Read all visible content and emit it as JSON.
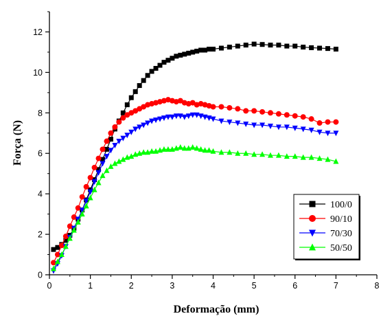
{
  "chart_data": {
    "type": "scatter",
    "title": "",
    "xlabel": "Deformação (mm)",
    "ylabel": "Força (N)",
    "xlim": [
      0,
      8
    ],
    "ylim": [
      0,
      13
    ],
    "xticks": [
      0,
      1,
      2,
      3,
      4,
      5,
      6,
      7,
      8
    ],
    "yticks": [
      0,
      2,
      4,
      6,
      8,
      10,
      12
    ],
    "grid": false,
    "legend_position": "bottom-right",
    "series": [
      {
        "name": "100/0",
        "color": "#000000",
        "marker": "square",
        "x": [
          0.1,
          0.2,
          0.3,
          0.4,
          0.5,
          0.6,
          0.7,
          0.8,
          0.9,
          1.0,
          1.1,
          1.2,
          1.3,
          1.4,
          1.5,
          1.6,
          1.7,
          1.8,
          1.9,
          2.0,
          2.1,
          2.2,
          2.3,
          2.4,
          2.5,
          2.6,
          2.7,
          2.8,
          2.9,
          3.0,
          3.1,
          3.2,
          3.3,
          3.4,
          3.5,
          3.6,
          3.7,
          3.8,
          3.9,
          4.0,
          4.2,
          4.4,
          4.6,
          4.8,
          5.0,
          5.2,
          5.4,
          5.6,
          5.8,
          6.0,
          6.2,
          6.4,
          6.6,
          6.8,
          7.0
        ],
        "y": [
          1.25,
          1.35,
          1.5,
          1.7,
          1.95,
          2.3,
          2.75,
          3.2,
          3.7,
          4.2,
          4.7,
          5.2,
          5.7,
          6.2,
          6.7,
          7.2,
          7.6,
          8.0,
          8.4,
          8.75,
          9.05,
          9.35,
          9.6,
          9.85,
          10.05,
          10.2,
          10.35,
          10.5,
          10.6,
          10.7,
          10.8,
          10.85,
          10.9,
          10.95,
          11.0,
          11.05,
          11.1,
          11.1,
          11.15,
          11.15,
          11.2,
          11.25,
          11.3,
          11.35,
          11.4,
          11.38,
          11.35,
          11.35,
          11.3,
          11.3,
          11.25,
          11.22,
          11.2,
          11.18,
          11.15
        ]
      },
      {
        "name": "90/10",
        "color": "#ff0000",
        "marker": "circle",
        "x": [
          0.1,
          0.2,
          0.3,
          0.4,
          0.5,
          0.6,
          0.7,
          0.8,
          0.9,
          1.0,
          1.1,
          1.2,
          1.3,
          1.4,
          1.5,
          1.6,
          1.7,
          1.8,
          1.9,
          2.0,
          2.1,
          2.2,
          2.3,
          2.4,
          2.5,
          2.6,
          2.7,
          2.8,
          2.9,
          3.0,
          3.1,
          3.2,
          3.3,
          3.4,
          3.5,
          3.6,
          3.7,
          3.8,
          3.9,
          4.0,
          4.2,
          4.4,
          4.6,
          4.8,
          5.0,
          5.2,
          5.4,
          5.6,
          5.8,
          6.0,
          6.2,
          6.4,
          6.6,
          6.8,
          7.0
        ],
        "y": [
          0.6,
          1.0,
          1.45,
          1.9,
          2.4,
          2.85,
          3.3,
          3.85,
          4.35,
          4.8,
          5.3,
          5.75,
          6.2,
          6.6,
          7.0,
          7.3,
          7.55,
          7.75,
          7.9,
          8.0,
          8.1,
          8.2,
          8.3,
          8.4,
          8.45,
          8.5,
          8.55,
          8.6,
          8.65,
          8.6,
          8.55,
          8.6,
          8.5,
          8.45,
          8.5,
          8.4,
          8.45,
          8.4,
          8.35,
          8.3,
          8.3,
          8.25,
          8.2,
          8.1,
          8.1,
          8.05,
          8.0,
          7.95,
          7.9,
          7.85,
          7.8,
          7.7,
          7.5,
          7.55,
          7.55
        ]
      },
      {
        "name": "70/30",
        "color": "#0000ff",
        "marker": "triangle-down",
        "x": [
          0.1,
          0.2,
          0.3,
          0.4,
          0.5,
          0.6,
          0.7,
          0.8,
          0.9,
          1.0,
          1.1,
          1.2,
          1.3,
          1.4,
          1.5,
          1.6,
          1.7,
          1.8,
          1.9,
          2.0,
          2.1,
          2.2,
          2.3,
          2.4,
          2.5,
          2.6,
          2.7,
          2.8,
          2.9,
          3.0,
          3.1,
          3.2,
          3.3,
          3.4,
          3.5,
          3.6,
          3.7,
          3.8,
          3.9,
          4.0,
          4.2,
          4.4,
          4.6,
          4.8,
          5.0,
          5.2,
          5.4,
          5.6,
          5.8,
          6.0,
          6.2,
          6.4,
          6.6,
          6.8,
          7.0
        ],
        "y": [
          0.2,
          0.55,
          0.95,
          1.4,
          1.85,
          2.3,
          2.75,
          3.2,
          3.65,
          4.1,
          4.6,
          5.05,
          5.5,
          5.85,
          6.15,
          6.4,
          6.6,
          6.75,
          6.9,
          7.05,
          7.2,
          7.3,
          7.4,
          7.5,
          7.6,
          7.65,
          7.7,
          7.75,
          7.8,
          7.8,
          7.85,
          7.85,
          7.8,
          7.85,
          7.9,
          7.9,
          7.85,
          7.8,
          7.75,
          7.7,
          7.6,
          7.55,
          7.5,
          7.45,
          7.4,
          7.4,
          7.35,
          7.3,
          7.3,
          7.25,
          7.2,
          7.15,
          7.05,
          7.0,
          7.0
        ]
      },
      {
        "name": "50/50",
        "color": "#00ff00",
        "marker": "triangle-up",
        "x": [
          0.1,
          0.2,
          0.3,
          0.4,
          0.5,
          0.6,
          0.7,
          0.8,
          0.9,
          1.0,
          1.1,
          1.2,
          1.3,
          1.4,
          1.5,
          1.6,
          1.7,
          1.8,
          1.9,
          2.0,
          2.1,
          2.2,
          2.3,
          2.4,
          2.5,
          2.6,
          2.7,
          2.8,
          2.9,
          3.0,
          3.1,
          3.2,
          3.3,
          3.4,
          3.5,
          3.6,
          3.7,
          3.8,
          3.9,
          4.0,
          4.2,
          4.4,
          4.6,
          4.8,
          5.0,
          5.2,
          5.4,
          5.6,
          5.8,
          6.0,
          6.2,
          6.4,
          6.6,
          6.8,
          7.0
        ],
        "y": [
          0.3,
          0.65,
          1.0,
          1.4,
          1.8,
          2.2,
          2.6,
          3.0,
          3.4,
          3.8,
          4.2,
          4.55,
          4.9,
          5.15,
          5.35,
          5.5,
          5.6,
          5.7,
          5.8,
          5.85,
          5.95,
          6.0,
          6.05,
          6.05,
          6.1,
          6.1,
          6.15,
          6.2,
          6.2,
          6.2,
          6.25,
          6.3,
          6.25,
          6.25,
          6.3,
          6.25,
          6.2,
          6.15,
          6.15,
          6.1,
          6.05,
          6.05,
          6.0,
          6.0,
          5.95,
          5.95,
          5.9,
          5.9,
          5.85,
          5.85,
          5.8,
          5.8,
          5.75,
          5.7,
          5.6
        ]
      }
    ]
  }
}
